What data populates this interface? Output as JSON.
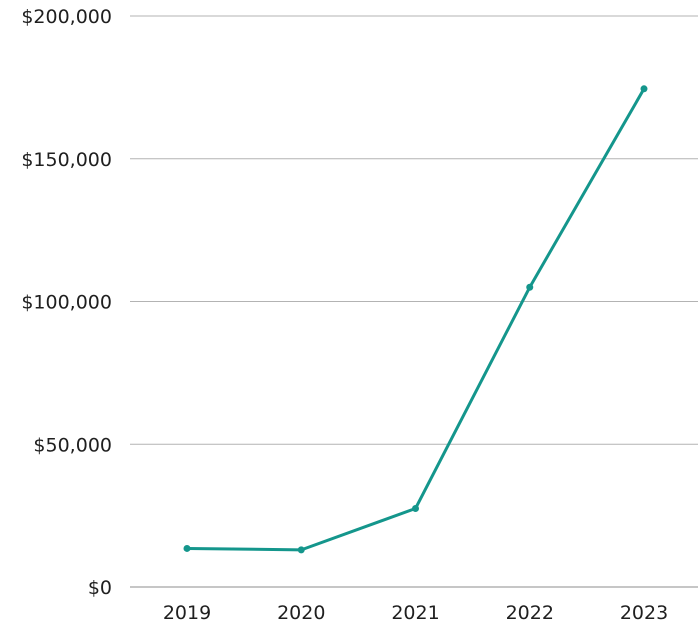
{
  "chart_data": {
    "type": "line",
    "title": "",
    "xlabel": "",
    "ylabel": "",
    "categories": [
      "2019",
      "2020",
      "2021",
      "2022",
      "2023"
    ],
    "series": [
      {
        "values": [
          13500,
          13000,
          27500,
          105000,
          174500
        ],
        "color": "#14968c"
      }
    ],
    "ylim": [
      0,
      200000
    ],
    "y_ticks": [
      0,
      50000,
      100000,
      150000,
      200000
    ],
    "y_tick_labels": [
      "$0",
      "$50,000",
      "$100,000",
      "$150,000",
      "$200,000"
    ],
    "grid": true,
    "legend": "none"
  }
}
